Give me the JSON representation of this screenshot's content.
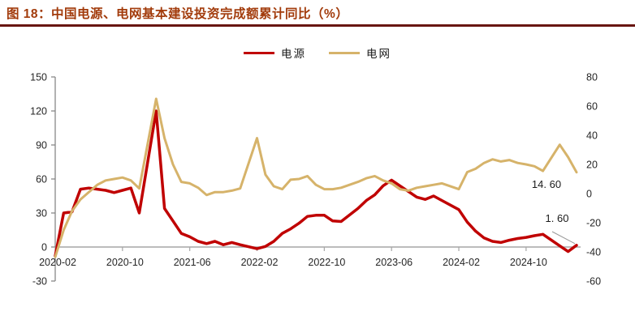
{
  "header": {
    "title": "图 18：中国电源、电网基本建设投资完成额累计同比（%）"
  },
  "chart_data": {
    "type": "line",
    "title": "中国电源、电网基本建设投资完成额累计同比（%）",
    "grid": false,
    "legend_position": "top-center",
    "x": [
      "2020-02",
      "2020-03",
      "2020-04",
      "2020-05",
      "2020-06",
      "2020-07",
      "2020-08",
      "2020-09",
      "2020-10",
      "2020-11",
      "2020-12",
      "2021-02",
      "2021-03",
      "2021-04",
      "2021-05",
      "2021-06",
      "2021-07",
      "2021-08",
      "2021-09",
      "2021-10",
      "2021-11",
      "2021-12",
      "2022-02",
      "2022-03",
      "2022-04",
      "2022-05",
      "2022-06",
      "2022-07",
      "2022-08",
      "2022-09",
      "2022-10",
      "2022-11",
      "2022-12",
      "2023-02",
      "2023-03",
      "2023-04",
      "2023-05",
      "2023-06",
      "2023-07",
      "2023-08",
      "2023-09",
      "2023-10",
      "2023-11",
      "2023-12",
      "2024-02",
      "2024-03",
      "2024-04",
      "2024-05",
      "2024-06",
      "2024-07",
      "2024-08",
      "2024-09",
      "2024-10",
      "2024-11",
      "2024-12",
      "2025-02",
      "2025-03",
      "2025-04"
    ],
    "series": [
      {
        "name": "电源",
        "axis": "left",
        "color": "#C00000",
        "stroke_width": 3.5,
        "values": [
          -8,
          30,
          31,
          51,
          52,
          51,
          50,
          48,
          50,
          52,
          30,
          120,
          34,
          23,
          12,
          9,
          5,
          3,
          5,
          2,
          4,
          2,
          -1.5,
          0.5,
          5,
          12,
          16,
          21,
          27,
          28,
          28,
          23,
          22.5,
          34,
          41,
          46,
          54,
          59,
          54,
          49,
          44,
          42,
          45,
          41,
          33,
          22,
          14,
          8,
          5,
          4,
          6,
          7.5,
          8.5,
          10,
          11.2,
          1,
          -4,
          1.6
        ]
      },
      {
        "name": "电网",
        "axis": "right",
        "color": "#D6B36A",
        "stroke_width": 3,
        "values": [
          -43.5,
          -25,
          -12,
          -4,
          1,
          6,
          9,
          10,
          11,
          9,
          3.5,
          65,
          38,
          20,
          8,
          7,
          4,
          -1,
          1,
          1,
          2,
          3.5,
          38,
          13,
          5,
          3,
          9.5,
          10,
          12,
          6,
          3,
          3,
          4,
          8,
          10.5,
          12,
          9,
          7,
          3,
          2,
          4,
          5,
          6,
          7,
          3,
          14.7,
          17,
          21,
          23.5,
          22,
          23,
          21,
          20,
          18.7,
          15.5,
          33.5,
          25,
          14.6
        ]
      }
    ],
    "x_tick_labels": [
      "2020-02",
      "2020-10",
      "2021-06",
      "2022-02",
      "2022-10",
      "2023-06",
      "2024-02",
      "2024-10"
    ],
    "left_axis": {
      "ticks": [
        150,
        120,
        90,
        60,
        30,
        0,
        -30
      ],
      "min": -30,
      "max": 150
    },
    "right_axis": {
      "ticks": [
        80,
        60,
        40,
        20,
        0,
        -20,
        -40,
        -60
      ],
      "min": -60,
      "max": 80
    },
    "annotations": [
      {
        "text": "14. 60",
        "target": "电网",
        "value": 14.6
      },
      {
        "text": "1. 60",
        "target": "电源",
        "value": 1.6,
        "leader": true
      }
    ]
  },
  "colors": {
    "title": "#A23B0B",
    "title_rule": "#681510",
    "axis_text": "#262626",
    "x_axis_line": "#A6A6A6",
    "y_axis_line": "#7F7F7F",
    "leader_line": "#999999",
    "background": "#FFFFFF"
  }
}
